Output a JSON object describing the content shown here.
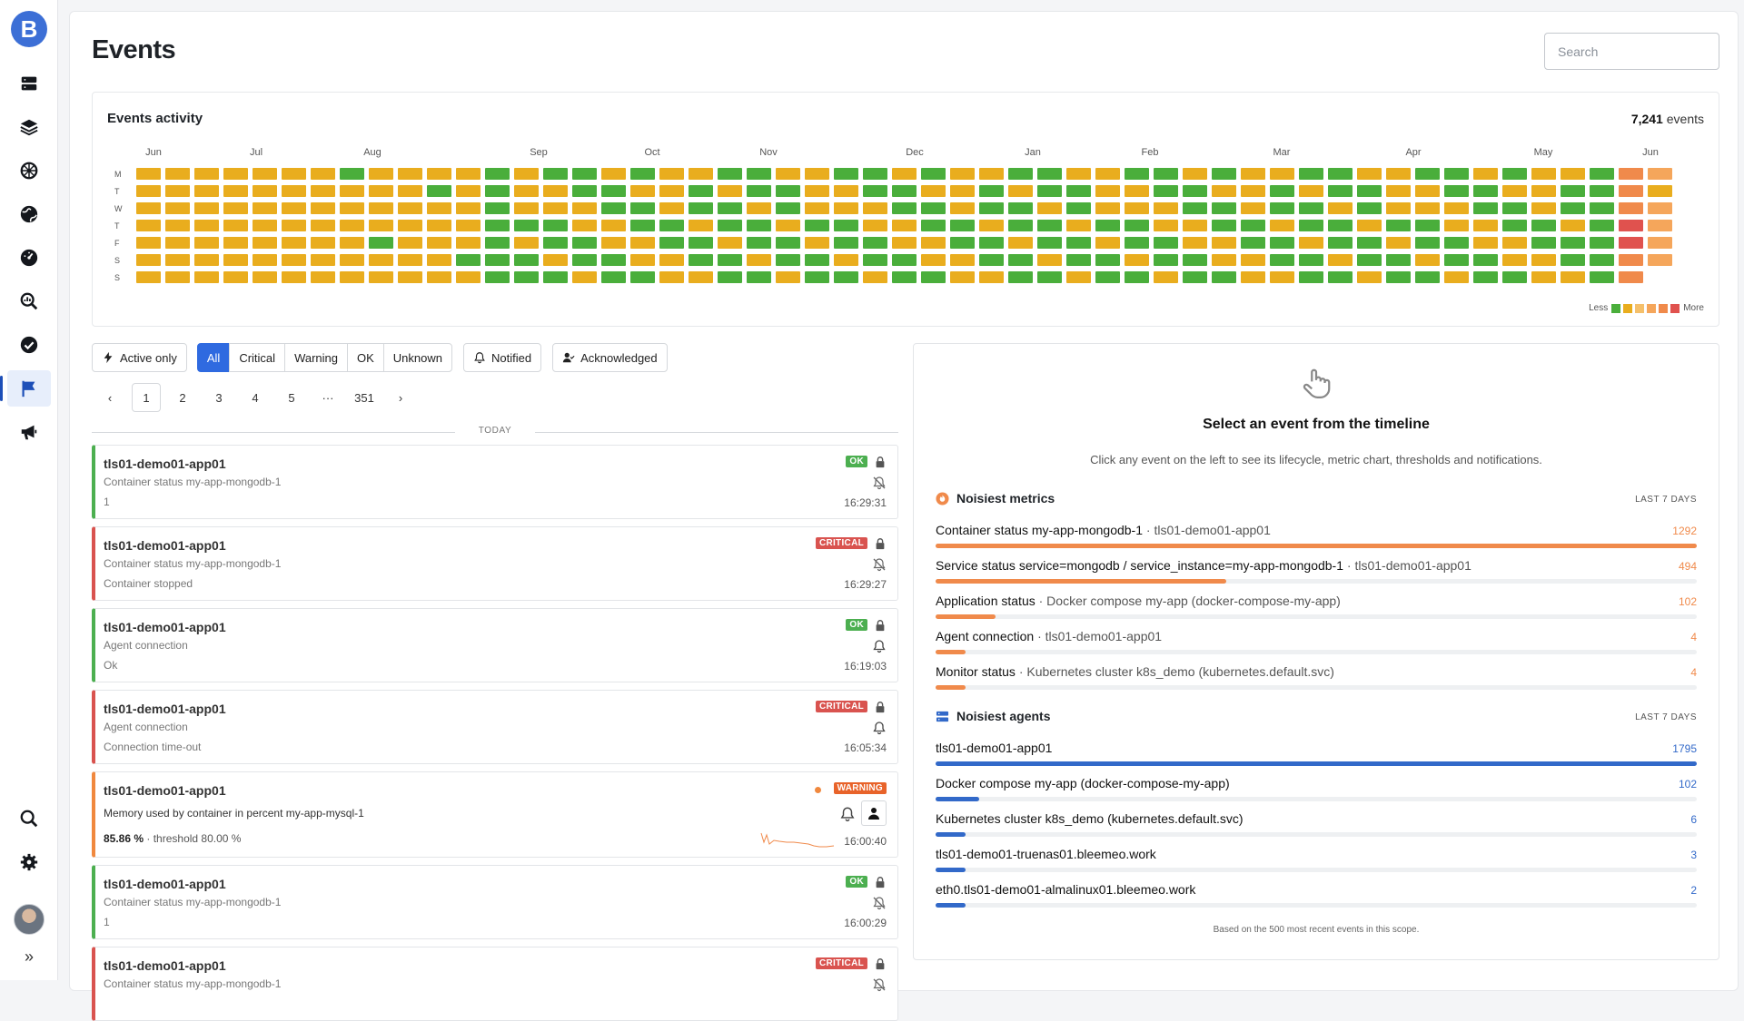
{
  "page": {
    "title": "Events",
    "search_placeholder": "Search"
  },
  "sidebar": {
    "logo": "B",
    "items": [
      {
        "name": "servers-icon"
      },
      {
        "name": "layers-icon"
      },
      {
        "name": "kubernetes-icon"
      },
      {
        "name": "globe-icon"
      },
      {
        "name": "gauge-icon"
      },
      {
        "name": "explore-icon"
      },
      {
        "name": "check-circle-icon"
      },
      {
        "name": "flag-icon",
        "active": true
      },
      {
        "name": "megaphone-icon"
      }
    ],
    "bottom": [
      {
        "name": "search-icon"
      },
      {
        "name": "gear-icon"
      }
    ],
    "expand_label": "»"
  },
  "activity": {
    "title": "Events activity",
    "count_value": "7,241",
    "count_label": "events",
    "months": [
      "Jun",
      "Jul",
      "Aug",
      "Sep",
      "Oct",
      "Nov",
      "Dec",
      "Jan",
      "Feb",
      "Mar",
      "Apr",
      "May",
      "Jun"
    ],
    "days": [
      "M",
      "T",
      "W",
      "T",
      "F",
      "S",
      "S"
    ],
    "legend_less": "Less",
    "legend_more": "More",
    "colors": {
      "green": "#4aae3b",
      "yellow": "#e9ad1e",
      "orange-light": "#f5a65b",
      "orange": "#f08a4b",
      "red": "#e0524e"
    },
    "legend_colors": [
      "#4aae3b",
      "#e9ad1e",
      "#f5c06b",
      "#f5a65b",
      "#f08a4b",
      "#e0524e"
    ]
  },
  "filters": {
    "active_only": "Active only",
    "severity": [
      "All",
      "Critical",
      "Warning",
      "OK",
      "Unknown"
    ],
    "notified": "Notified",
    "acknowledged": "Acknowledged"
  },
  "pager": {
    "prev": "‹",
    "pages": [
      "1",
      "2",
      "3",
      "4",
      "5"
    ],
    "ellipsis": "···",
    "last": "351",
    "next": "›"
  },
  "timeline": {
    "today_label": "TODAY",
    "events": [
      {
        "status": "ok",
        "badge": "OK",
        "host": "tls01-demo01-app01",
        "metric": "Container status my-app-mongodb-1",
        "value": "1",
        "time": "16:29:31",
        "bell": "muted"
      },
      {
        "status": "critical",
        "badge": "CRITICAL",
        "host": "tls01-demo01-app01",
        "metric": "Container status my-app-mongodb-1",
        "value": "Container stopped",
        "time": "16:29:27",
        "bell": "muted"
      },
      {
        "status": "ok",
        "badge": "OK",
        "host": "tls01-demo01-app01",
        "metric": "Agent connection",
        "value": "Ok",
        "time": "16:19:03",
        "bell": "on"
      },
      {
        "status": "critical",
        "badge": "CRITICAL",
        "host": "tls01-demo01-app01",
        "metric": "Agent connection",
        "value": "Connection time-out",
        "time": "16:05:34",
        "bell": "on"
      },
      {
        "status": "warning",
        "badge": "WARNING",
        "host": "tls01-demo01-app01",
        "metric": "Memory used by container in percent my-app-mysql-1",
        "value_main": "85.86 %",
        "value_rest": " · threshold 80.00 %",
        "time": "16:00:40"
      },
      {
        "status": "ok",
        "badge": "OK",
        "host": "tls01-demo01-app01",
        "metric": "Container status my-app-mongodb-1",
        "value": "1",
        "time": "16:00:29",
        "bell": "muted"
      },
      {
        "status": "critical",
        "badge": "CRITICAL",
        "host": "tls01-demo01-app01",
        "metric": "Container status my-app-mongodb-1",
        "value": "",
        "time": "",
        "bell": "muted"
      }
    ]
  },
  "detail": {
    "title": "Select an event from the timeline",
    "subtitle": "Click any event on the left to see its lifecycle, metric chart, thresholds and notifications.",
    "noisiest_metrics": {
      "title": "Noisiest metrics",
      "range": "LAST 7 DAYS",
      "color": "#f08a4b",
      "items": [
        {
          "label": "Container status my-app-mongodb-1",
          "sub": " · tls01-demo01-app01",
          "count": "1292",
          "fraction": 1.0
        },
        {
          "label": "Service status service=mongodb / service_instance=my-app-mongodb-1",
          "sub": " · tls01-demo01-app01",
          "count": "494",
          "fraction": 0.382
        },
        {
          "label": "Application status",
          "sub": " · Docker compose my-app (docker-compose-my-app)",
          "count": "102",
          "fraction": 0.079
        },
        {
          "label": "Agent connection",
          "sub": " · tls01-demo01-app01",
          "count": "4",
          "fraction": 0.039
        },
        {
          "label": "Monitor status",
          "sub": " · Kubernetes cluster k8s_demo (kubernetes.default.svc)",
          "count": "4",
          "fraction": 0.039
        }
      ]
    },
    "noisiest_agents": {
      "title": "Noisiest agents",
      "range": "LAST 7 DAYS",
      "color": "#3269c9",
      "items": [
        {
          "label": "tls01-demo01-app01",
          "count": "1795",
          "fraction": 1.0
        },
        {
          "label": "Docker compose my-app (docker-compose-my-app)",
          "count": "102",
          "fraction": 0.057
        },
        {
          "label": "Kubernetes cluster k8s_demo (kubernetes.default.svc)",
          "count": "6",
          "fraction": 0.039
        },
        {
          "label": "tls01-demo01-truenas01.bleemeo.work",
          "count": "3",
          "fraction": 0.039
        },
        {
          "label": "eth0.tls01-demo01-almalinux01.bleemeo.work",
          "count": "2",
          "fraction": 0.039
        }
      ]
    },
    "footnote": "Based on the 500 most recent events in this scope."
  }
}
